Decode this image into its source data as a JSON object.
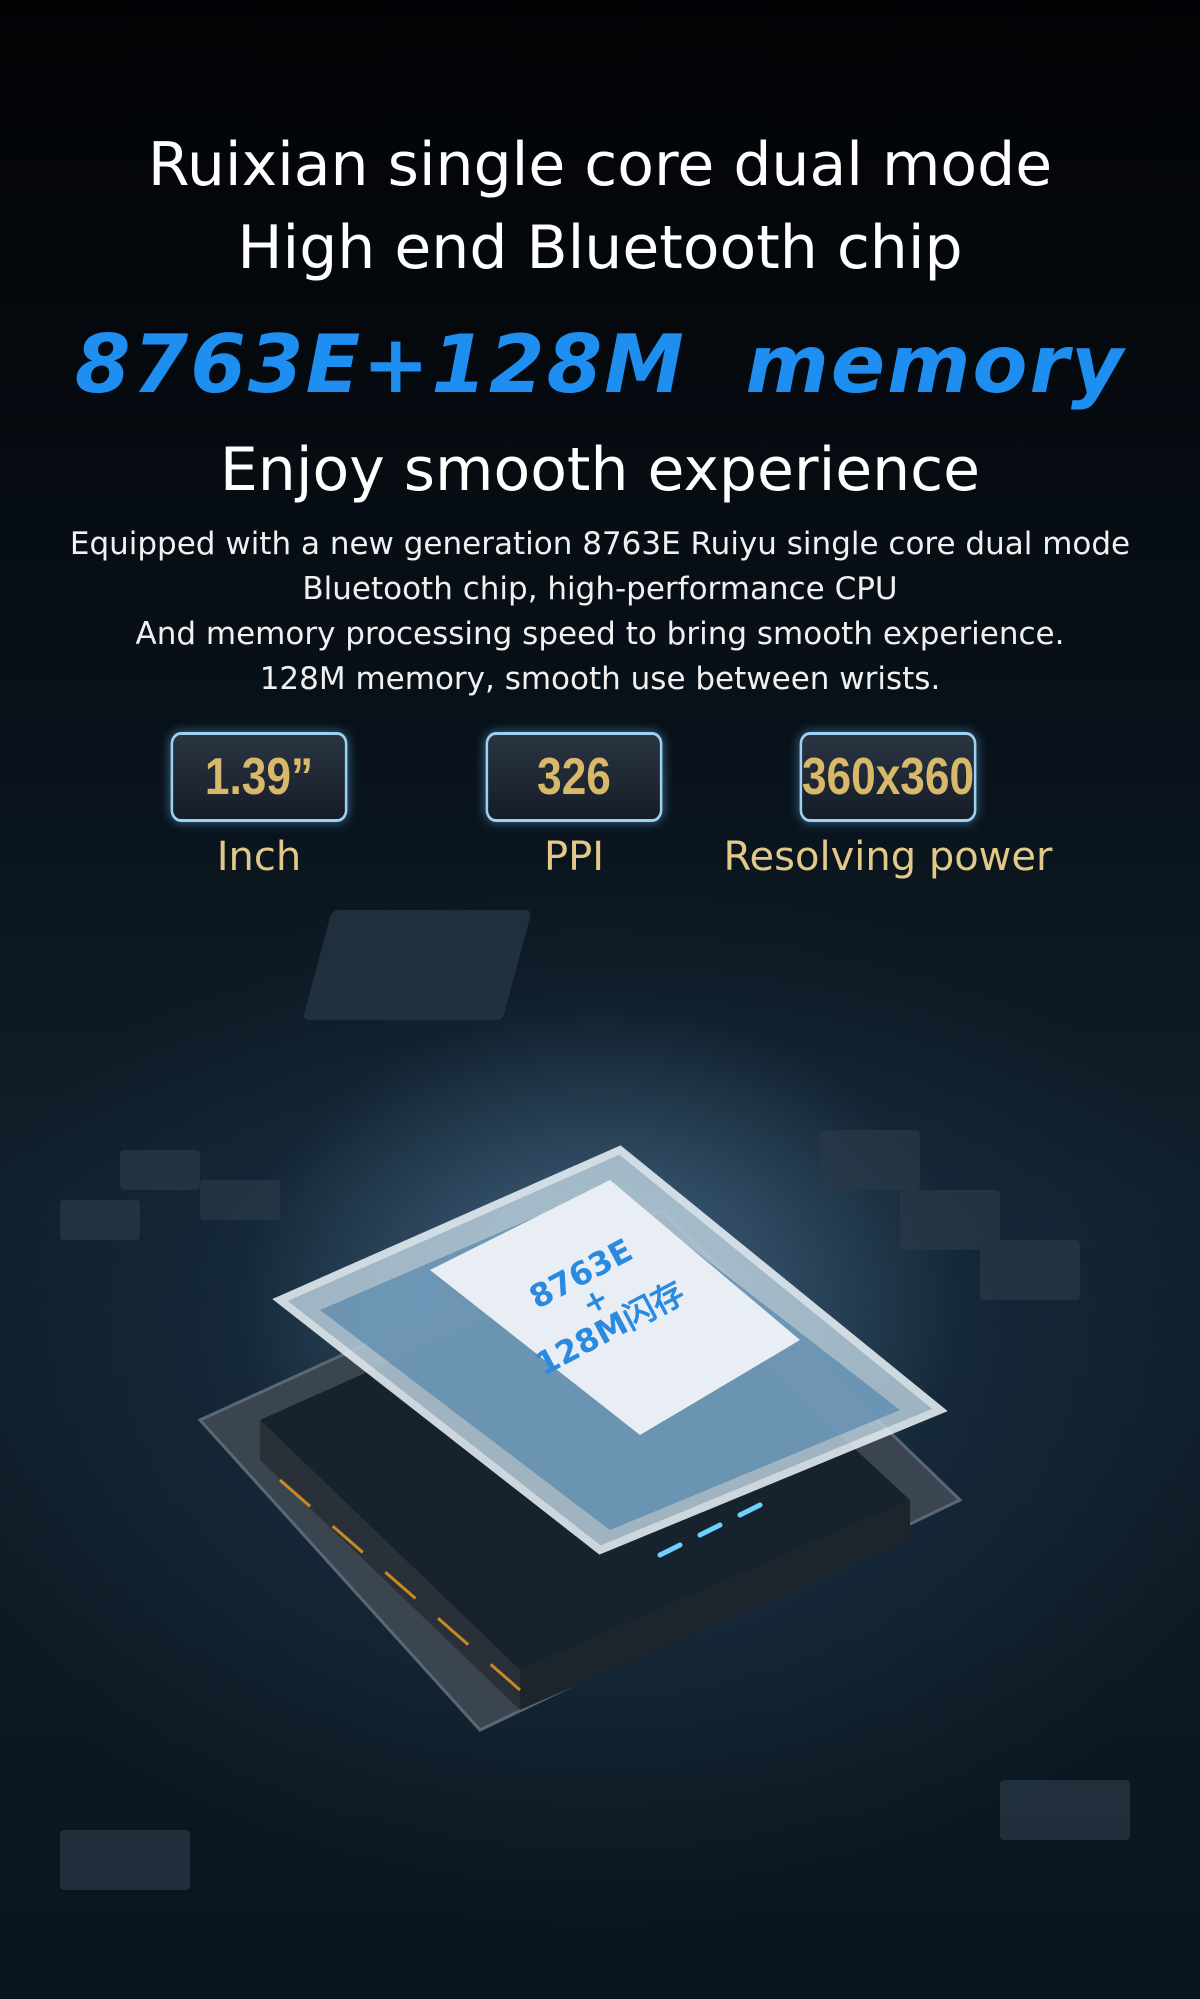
{
  "headline": {
    "line1": "Ruixian single core dual mode",
    "line2": "High end Bluetooth chip",
    "highlight": "8763E+128M  memory",
    "subtitle": "Enjoy smooth experience"
  },
  "description": [
    "Equipped with a new generation 8763E Ruiyu single core dual mode",
    "Bluetooth chip, high-performance CPU",
    "And memory processing speed to bring smooth experience.",
    "128M memory, smooth use between wrists."
  ],
  "specs": [
    {
      "value": "1.39”",
      "label": "Inch"
    },
    {
      "value": "326",
      "label": "PPI"
    },
    {
      "value": "360x360",
      "label": "Resolving power"
    }
  ],
  "chip": {
    "line1": "8763E",
    "line2": "+",
    "line3": "128M闪存"
  },
  "colors": {
    "highlight": "#1e8ff0",
    "gold": "#d8b86a"
  }
}
